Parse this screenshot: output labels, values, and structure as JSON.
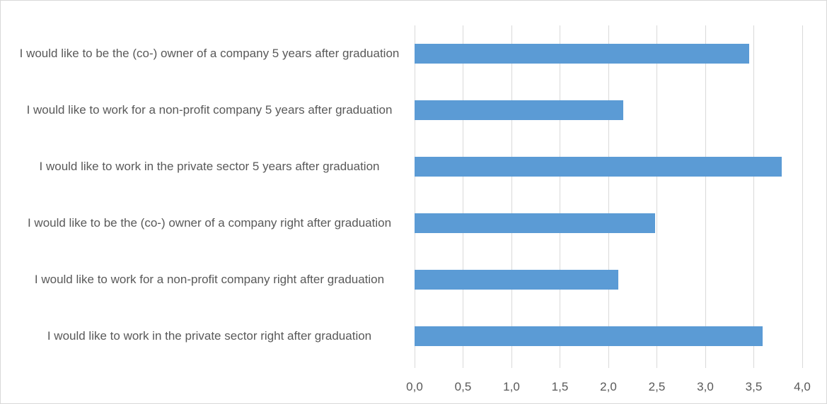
{
  "chart_data": {
    "type": "bar",
    "orientation": "horizontal",
    "categories": [
      "I would like to be the (co-) owner of a company 5 years after graduation",
      "I would like to work for a non-profit company 5 years after graduation",
      "I would like to work in the private sector 5 years after graduation",
      "I would like to be the (co-) owner of a company right after graduation",
      "I would like to work for a non-profit company right after graduation",
      "I would like to work in the private sector right after graduation"
    ],
    "values": [
      3.45,
      2.15,
      3.79,
      2.48,
      2.1,
      3.59
    ],
    "color": "#5b9bd5",
    "xlim": [
      0,
      4
    ],
    "xticks": [
      {
        "value": 0,
        "label": "0,0"
      },
      {
        "value": 0.5,
        "label": "0,5"
      },
      {
        "value": 1,
        "label": "1,0"
      },
      {
        "value": 1.5,
        "label": "1,5"
      },
      {
        "value": 2,
        "label": "2,0"
      },
      {
        "value": 2.5,
        "label": "2,5"
      },
      {
        "value": 3,
        "label": "3,0"
      },
      {
        "value": 3.5,
        "label": "3,5"
      },
      {
        "value": 4,
        "label": "4,0"
      }
    ],
    "grid": true
  }
}
